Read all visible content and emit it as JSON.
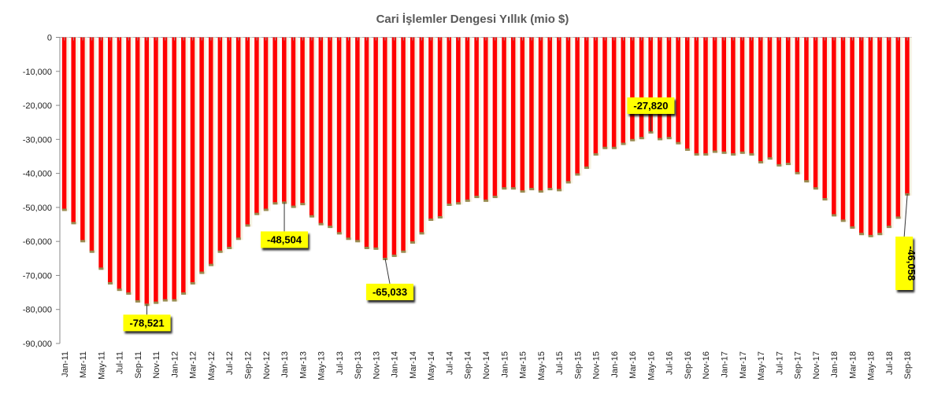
{
  "chart_data": {
    "type": "bar",
    "title": "Cari İşlemler Dengesi Yıllık (mio $)",
    "xlabel": "",
    "ylabel": "",
    "ylim": [
      -90000,
      0
    ],
    "yticks": [
      0,
      -10000,
      -20000,
      -30000,
      -40000,
      -50000,
      -60000,
      -70000,
      -80000,
      -90000
    ],
    "ytick_labels": [
      "0",
      "-10,000",
      "-20,000",
      "-30,000",
      "-40,000",
      "-50,000",
      "-60,000",
      "-70,000",
      "-80,000",
      "-90,000"
    ],
    "grid": false,
    "bar_color": "#ff0000",
    "label_color": "#ffff00",
    "categories": [
      "Jan-11",
      "Feb-11",
      "Mar-11",
      "Apr-11",
      "May-11",
      "Jun-11",
      "Jul-11",
      "Aug-11",
      "Sep-11",
      "Oct-11",
      "Nov-11",
      "Dec-11",
      "Jan-12",
      "Feb-12",
      "Mar-12",
      "Apr-12",
      "May-12",
      "Jun-12",
      "Jul-12",
      "Aug-12",
      "Sep-12",
      "Oct-12",
      "Nov-12",
      "Dec-12",
      "Jan-13",
      "Feb-13",
      "Mar-13",
      "Apr-13",
      "May-13",
      "Jun-13",
      "Jul-13",
      "Aug-13",
      "Sep-13",
      "Oct-13",
      "Nov-13",
      "Dec-13",
      "Jan-14",
      "Feb-14",
      "Mar-14",
      "Apr-14",
      "May-14",
      "Jun-14",
      "Jul-14",
      "Aug-14",
      "Sep-14",
      "Oct-14",
      "Nov-14",
      "Dec-14",
      "Jan-15",
      "Feb-15",
      "Mar-15",
      "Apr-15",
      "May-15",
      "Jun-15",
      "Jul-15",
      "Aug-15",
      "Sep-15",
      "Oct-15",
      "Nov-15",
      "Dec-15",
      "Jan-16",
      "Feb-16",
      "Mar-16",
      "Apr-16",
      "May-16",
      "Jun-16",
      "Jul-16",
      "Aug-16",
      "Sep-16",
      "Oct-16",
      "Nov-16",
      "Dec-16",
      "Jan-17",
      "Feb-17",
      "Mar-17",
      "Apr-17",
      "May-17",
      "Jun-17",
      "Jul-17",
      "Aug-17",
      "Sep-17",
      "Oct-17",
      "Nov-17",
      "Dec-17",
      "Jan-18",
      "Feb-18",
      "Mar-18",
      "Apr-18",
      "May-18",
      "Jun-18",
      "Jul-18",
      "Aug-18",
      "Sep-18"
    ],
    "values": [
      -50600,
      -54500,
      -59800,
      -62900,
      -67900,
      -72200,
      -74100,
      -75200,
      -77500,
      -78521,
      -77900,
      -77200,
      -77200,
      -75200,
      -72200,
      -69100,
      -66800,
      -62900,
      -61800,
      -59100,
      -55200,
      -51800,
      -50600,
      -48700,
      -48504,
      -49700,
      -48900,
      -52500,
      -54800,
      -55600,
      -57500,
      -59100,
      -59800,
      -61800,
      -62000,
      -65033,
      -64100,
      -62900,
      -60200,
      -57500,
      -53500,
      -52800,
      -49100,
      -48700,
      -47900,
      -46800,
      -47900,
      -46800,
      -44300,
      -44300,
      -45200,
      -44500,
      -45200,
      -44500,
      -44800,
      -42500,
      -40200,
      -38200,
      -34300,
      -32400,
      -32400,
      -31200,
      -30100,
      -29500,
      -27820,
      -29800,
      -29500,
      -31000,
      -32900,
      -34300,
      -34300,
      -33500,
      -33800,
      -34300,
      -33800,
      -34300,
      -36600,
      -35500,
      -37500,
      -37100,
      -39800,
      -42200,
      -44300,
      -47500,
      -52200,
      -53800,
      -55800,
      -57700,
      -58300,
      -57700,
      -55600,
      -52900,
      -46058
    ],
    "annotations": [
      {
        "category": "Oct-11",
        "text": "-78,521"
      },
      {
        "category": "Jan-13",
        "text": "-48,504"
      },
      {
        "category": "Dec-13",
        "text": "-65,033"
      },
      {
        "category": "May-16",
        "text": "-27,820"
      },
      {
        "category": "Sep-18",
        "text": "-46,058"
      }
    ]
  }
}
